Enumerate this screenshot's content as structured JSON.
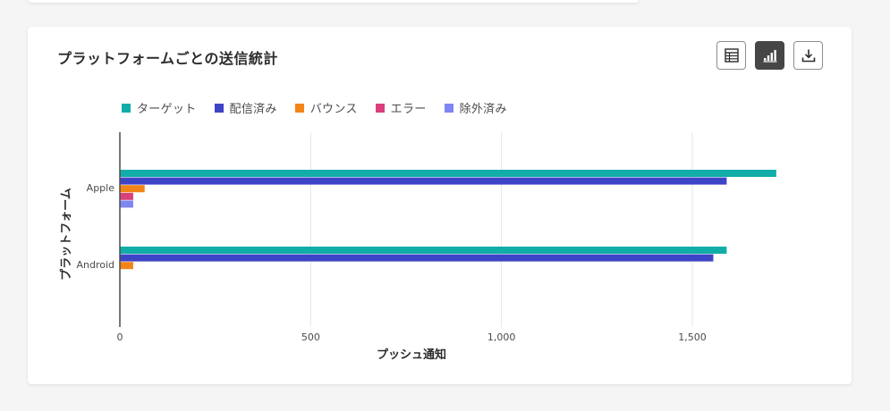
{
  "card": {
    "title": "プラットフォームごとの送信統計"
  },
  "toolbar": {
    "buttons": [
      {
        "name": "table-view-button",
        "icon": "table-icon",
        "active": false
      },
      {
        "name": "chart-view-button",
        "icon": "bar-chart-icon",
        "active": true
      },
      {
        "name": "download-button",
        "icon": "download-icon",
        "active": false
      }
    ]
  },
  "chart_data": {
    "type": "bar",
    "orientation": "horizontal",
    "title": "",
    "categories": [
      "Apple",
      "Android"
    ],
    "series": [
      {
        "name": "ターゲット",
        "color": "#12ada8",
        "values": [
          1720,
          1590
        ]
      },
      {
        "name": "配信済み",
        "color": "#3e44c6",
        "values": [
          1590,
          1555
        ]
      },
      {
        "name": "バウンス",
        "color": "#f28518",
        "values": [
          65,
          35
        ]
      },
      {
        "name": "エラー",
        "color": "#d9407c",
        "values": [
          35,
          0
        ]
      },
      {
        "name": "除外済み",
        "color": "#7f86f2",
        "values": [
          35,
          0
        ]
      }
    ],
    "xlabel": "プッシュ通知",
    "ylabel": "プラットフォーム",
    "xlim": [
      0,
      1800
    ],
    "xticks": [
      0,
      500,
      1000,
      1500
    ],
    "xtick_labels": [
      "0",
      "500",
      "1,000",
      "1,500"
    ],
    "grid": true,
    "legend": "top-left"
  }
}
